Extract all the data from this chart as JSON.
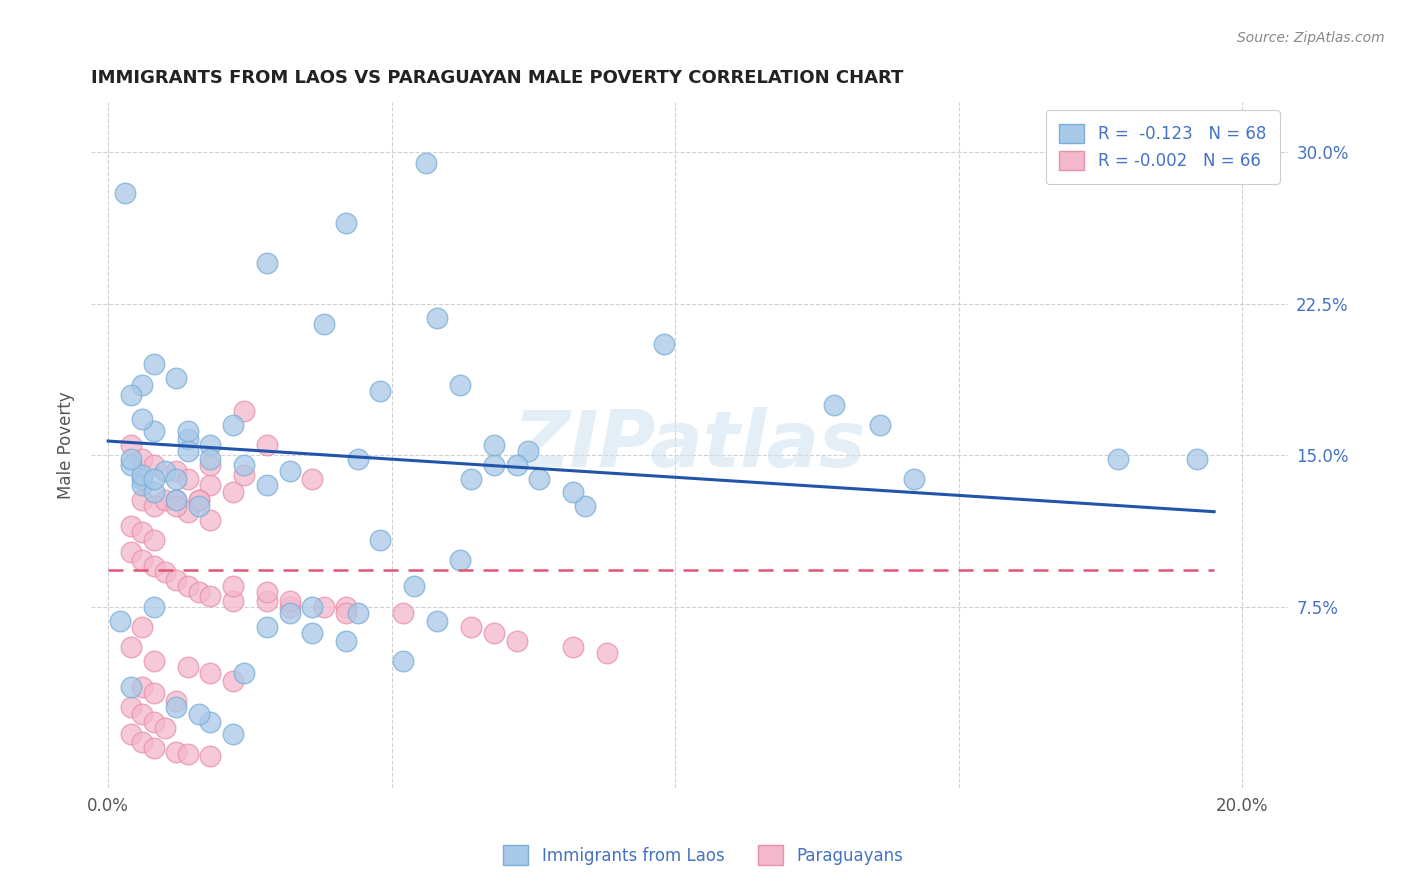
{
  "title": "IMMIGRANTS FROM LAOS VS PARAGUAYAN MALE POVERTY CORRELATION CHART",
  "source": "Source: ZipAtlas.com",
  "ylabel": "Male Poverty",
  "x_tick_positions": [
    0.0,
    0.05,
    0.1,
    0.15,
    0.2
  ],
  "x_tick_labels": [
    "0.0%",
    "",
    "",
    "",
    "20.0%"
  ],
  "y_tick_positions": [
    0.075,
    0.15,
    0.225,
    0.3
  ],
  "y_tick_labels": [
    "7.5%",
    "15.0%",
    "22.5%",
    "30.0%"
  ],
  "xlim": [
    -0.003,
    0.208
  ],
  "ylim": [
    -0.015,
    0.325
  ],
  "blue_color": "#a8c8e8",
  "blue_edge_color": "#7aaed6",
  "pink_color": "#f4b8cc",
  "pink_edge_color": "#e890a8",
  "blue_line_color": "#2255aa",
  "pink_line_color": "#e05575",
  "watermark": "ZIPatlas",
  "legend_label_blue": "R =  -0.123   N = 68",
  "legend_label_pink": "R = -0.002   N = 66",
  "bottom_legend_blue": "Immigrants from Laos",
  "bottom_legend_pink": "Paraguayans",
  "blue_scatter_x": [
    0.056,
    0.042,
    0.028,
    0.058,
    0.008,
    0.012,
    0.006,
    0.004,
    0.008,
    0.014,
    0.018,
    0.022,
    0.014,
    0.018,
    0.024,
    0.01,
    0.006,
    0.006,
    0.008,
    0.012,
    0.016,
    0.004,
    0.006,
    0.008,
    0.012,
    0.028,
    0.032,
    0.044,
    0.062,
    0.048,
    0.068,
    0.074,
    0.072,
    0.098,
    0.128,
    0.136,
    0.142,
    0.192,
    0.178,
    0.084,
    0.082,
    0.064,
    0.068,
    0.076,
    0.048,
    0.062,
    0.054,
    0.036,
    0.032,
    0.044,
    0.058,
    0.028,
    0.036,
    0.042,
    0.052,
    0.024,
    0.012,
    0.018,
    0.022,
    0.016,
    0.014,
    0.006,
    0.004,
    0.008,
    0.002,
    0.004,
    0.003,
    0.038
  ],
  "blue_scatter_y": [
    0.295,
    0.265,
    0.245,
    0.218,
    0.195,
    0.188,
    0.185,
    0.18,
    0.162,
    0.158,
    0.155,
    0.165,
    0.152,
    0.148,
    0.145,
    0.142,
    0.138,
    0.135,
    0.132,
    0.128,
    0.125,
    0.145,
    0.14,
    0.138,
    0.138,
    0.135,
    0.142,
    0.148,
    0.185,
    0.182,
    0.145,
    0.152,
    0.145,
    0.205,
    0.175,
    0.165,
    0.138,
    0.148,
    0.148,
    0.125,
    0.132,
    0.138,
    0.155,
    0.138,
    0.108,
    0.098,
    0.085,
    0.075,
    0.072,
    0.072,
    0.068,
    0.065,
    0.062,
    0.058,
    0.048,
    0.042,
    0.025,
    0.018,
    0.012,
    0.022,
    0.162,
    0.168,
    0.035,
    0.075,
    0.068,
    0.148,
    0.28,
    0.215
  ],
  "pink_scatter_x": [
    0.004,
    0.006,
    0.008,
    0.012,
    0.014,
    0.018,
    0.022,
    0.006,
    0.008,
    0.01,
    0.012,
    0.014,
    0.016,
    0.018,
    0.004,
    0.006,
    0.008,
    0.004,
    0.006,
    0.008,
    0.01,
    0.012,
    0.014,
    0.016,
    0.018,
    0.022,
    0.028,
    0.032,
    0.042,
    0.052,
    0.064,
    0.068,
    0.072,
    0.082,
    0.088,
    0.024,
    0.018,
    0.028,
    0.036,
    0.024,
    0.016,
    0.012,
    0.006,
    0.004,
    0.008,
    0.014,
    0.018,
    0.022,
    0.006,
    0.008,
    0.012,
    0.004,
    0.006,
    0.008,
    0.01,
    0.004,
    0.006,
    0.008,
    0.012,
    0.014,
    0.018,
    0.022,
    0.028,
    0.032,
    0.038,
    0.042
  ],
  "pink_scatter_y": [
    0.155,
    0.148,
    0.145,
    0.142,
    0.138,
    0.135,
    0.132,
    0.128,
    0.125,
    0.128,
    0.128,
    0.122,
    0.128,
    0.118,
    0.115,
    0.112,
    0.108,
    0.102,
    0.098,
    0.095,
    0.092,
    0.088,
    0.085,
    0.082,
    0.08,
    0.078,
    0.078,
    0.075,
    0.075,
    0.072,
    0.065,
    0.062,
    0.058,
    0.055,
    0.052,
    0.172,
    0.145,
    0.155,
    0.138,
    0.14,
    0.128,
    0.125,
    0.065,
    0.055,
    0.048,
    0.045,
    0.042,
    0.038,
    0.035,
    0.032,
    0.028,
    0.025,
    0.022,
    0.018,
    0.015,
    0.012,
    0.008,
    0.005,
    0.003,
    0.002,
    0.001,
    0.085,
    0.082,
    0.078,
    0.075,
    0.072
  ],
  "blue_trend_x": [
    0.0,
    0.195
  ],
  "blue_trend_y": [
    0.157,
    0.122
  ],
  "pink_trend_x": [
    0.0,
    0.195
  ],
  "pink_trend_y": [
    0.093,
    0.093
  ],
  "background_color": "#ffffff",
  "grid_color": "#cccccc",
  "title_color": "#222222",
  "source_color": "#888888",
  "axis_label_color": "#555555",
  "tick_color": "#4472c4"
}
